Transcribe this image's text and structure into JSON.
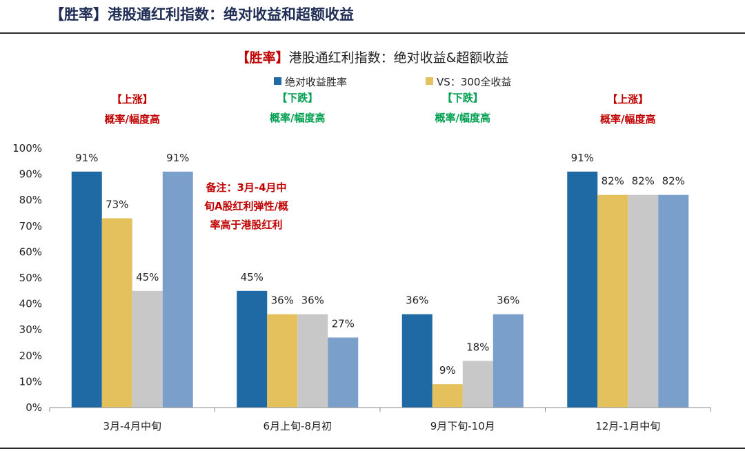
{
  "page": {
    "title": "【胜率】港股通红利指数：绝对收益和超额收益"
  },
  "chart_data": {
    "type": "bar",
    "title_tag": "【胜率】",
    "title": "港股通红利指数：绝对收益&超额收益",
    "categories": [
      "3月-4月中旬",
      "6月上旬-8月初",
      "9月下旬-10月",
      "12月-1月中旬"
    ],
    "series": [
      {
        "name": "绝对收益胜率",
        "color": "#1f6aa5",
        "values": [
          91,
          45,
          36,
          91
        ]
      },
      {
        "name": "VS：300全收益",
        "color": "#e4c15c",
        "values": [
          73,
          36,
          9,
          82
        ]
      },
      {
        "color": "#c8c8c8",
        "values": [
          45,
          36,
          18,
          82
        ]
      },
      {
        "color": "#7b9fcb",
        "values": [
          91,
          27,
          36,
          82
        ]
      }
    ],
    "y_ticks": [
      "0%",
      "10%",
      "20%",
      "30%",
      "40%",
      "50%",
      "60%",
      "70%",
      "80%",
      "90%",
      "100%"
    ],
    "ylim": [
      0,
      100
    ],
    "unit": "%",
    "legend_position": "top-center",
    "grid": false,
    "annotations": [
      {
        "lines": [
          "【上涨】",
          "概率/幅度高"
        ],
        "color": "#c00000",
        "category": 0
      },
      {
        "lines": [
          "【下跌】",
          "概率/幅度高"
        ],
        "color": "#00a050",
        "category": 1
      },
      {
        "lines": [
          "【下跌】",
          "概率/幅度高"
        ],
        "color": "#00a050",
        "category": 2
      },
      {
        "lines": [
          "【上涨】",
          "概率/幅度高"
        ],
        "color": "#c00000",
        "category": 3
      }
    ],
    "note": {
      "lines": [
        "备注：3月-4月中",
        "旬A股红利弹性/概",
        "率高于港股红利"
      ],
      "color": "#c00000"
    }
  }
}
